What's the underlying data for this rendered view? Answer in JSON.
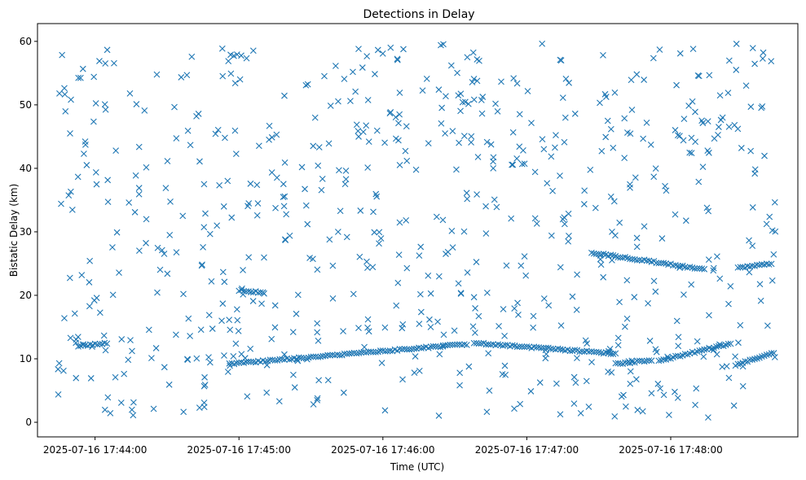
{
  "chart_data": {
    "type": "scatter",
    "title": "Detections in Delay",
    "xlabel": "Time (UTC)",
    "ylabel": "Bistatic Delay (km)",
    "x_unit": "time",
    "x_start": "2025-07-16 17:43:44",
    "x_end": "2025-07-16 17:48:44",
    "xlim": [
      "2025-07-16 17:43:36",
      "2025-07-16 17:48:53"
    ],
    "ylim": [
      -2.3,
      62.8
    ],
    "x_ticks": [
      "2025-07-16 17:44:00",
      "2025-07-16 17:45:00",
      "2025-07-16 17:46:00",
      "2025-07-16 17:47:00",
      "2025-07-16 17:48:00"
    ],
    "y_ticks": [
      0,
      10,
      20,
      30,
      40,
      50,
      60
    ],
    "marker": "x",
    "grid": false,
    "series": [
      {
        "color": "#1f77b4",
        "tracks": [
          {
            "t_start": "2025-07-16 17:43:53",
            "t_end": "2025-07-16 17:44:05",
            "y_start": 12.0,
            "y_end": 12.5,
            "step_s": 1
          },
          {
            "t_start": "2025-07-16 17:44:56",
            "t_end": "2025-07-16 17:46:35",
            "y_start": 9.2,
            "y_end": 12.3,
            "step_s": 1
          },
          {
            "t_start": "2025-07-16 17:45:00",
            "t_end": "2025-07-16 17:45:10",
            "y_start": 20.8,
            "y_end": 20.4,
            "step_s": 1
          },
          {
            "t_start": "2025-07-16 17:46:38",
            "t_end": "2025-07-16 17:47:37",
            "y_start": 12.5,
            "y_end": 10.8,
            "step_s": 1
          },
          {
            "t_start": "2025-07-16 17:47:27",
            "t_end": "2025-07-16 17:48:14",
            "y_start": 26.7,
            "y_end": 24.1,
            "step_s": 1
          },
          {
            "t_start": "2025-07-16 17:47:37",
            "t_end": "2025-07-16 17:47:52",
            "y_start": 9.2,
            "y_end": 9.8,
            "step_s": 1
          },
          {
            "t_start": "2025-07-16 17:47:55",
            "t_end": "2025-07-16 17:48:25",
            "y_start": 9.7,
            "y_end": 12.4,
            "step_s": 1
          },
          {
            "t_start": "2025-07-16 17:48:28",
            "t_end": "2025-07-16 17:48:42",
            "y_start": 24.3,
            "y_end": 25.0,
            "step_s": 1
          },
          {
            "t_start": "2025-07-16 17:48:27",
            "t_end": "2025-07-16 17:48:43",
            "y_start": 9.0,
            "y_end": 11.0,
            "step_s": 1
          }
        ],
        "clutter": {
          "count": 700,
          "y_range": [
            0.5,
            59.8
          ],
          "seed": 20250716
        }
      }
    ]
  }
}
